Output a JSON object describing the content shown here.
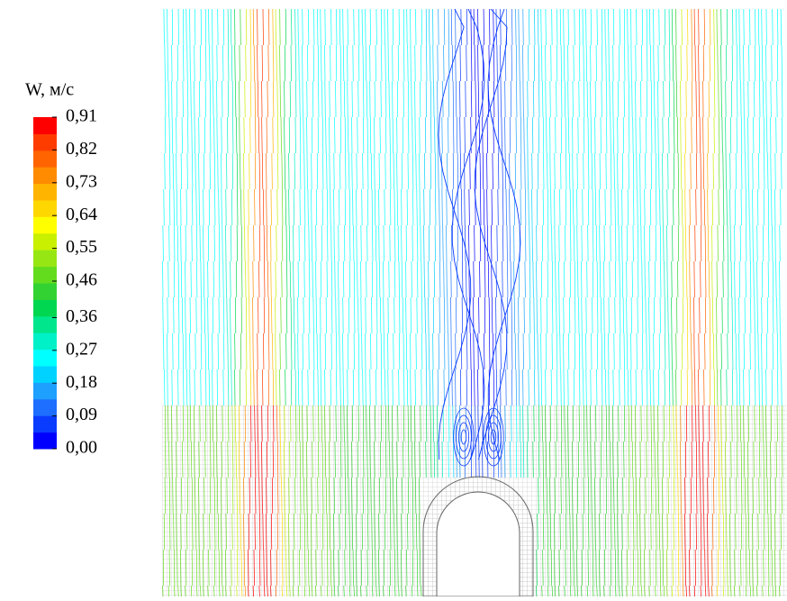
{
  "chart_data": {
    "type": "streamline",
    "colorbar": {
      "title": "W, м/с",
      "lim": [
        0,
        0.91
      ],
      "ticks": [
        {
          "value": 0.91,
          "label": "0,91"
        },
        {
          "value": 0.82,
          "label": "0,82"
        },
        {
          "value": 0.73,
          "label": "0,73"
        },
        {
          "value": 0.64,
          "label": "0,64"
        },
        {
          "value": 0.55,
          "label": "0,55"
        },
        {
          "value": 0.46,
          "label": "0,46"
        },
        {
          "value": 0.36,
          "label": "0,36"
        },
        {
          "value": 0.27,
          "label": "0,27"
        },
        {
          "value": 0.18,
          "label": "0,18"
        },
        {
          "value": 0.09,
          "label": "0,09"
        },
        {
          "value": 0,
          "label": "0,00"
        }
      ],
      "colors": [
        "#0000ff",
        "#0a3cff",
        "#1e6eff",
        "#1ea0ff",
        "#00d2ff",
        "#00ffff",
        "#00f0c8",
        "#00e68c",
        "#00d750",
        "#32d232",
        "#64dc1e",
        "#96e614",
        "#c8f000",
        "#ffff00",
        "#ffd700",
        "#ffb400",
        "#ff8c00",
        "#ff6400",
        "#ff3c00",
        "#ff0000"
      ]
    }
  }
}
